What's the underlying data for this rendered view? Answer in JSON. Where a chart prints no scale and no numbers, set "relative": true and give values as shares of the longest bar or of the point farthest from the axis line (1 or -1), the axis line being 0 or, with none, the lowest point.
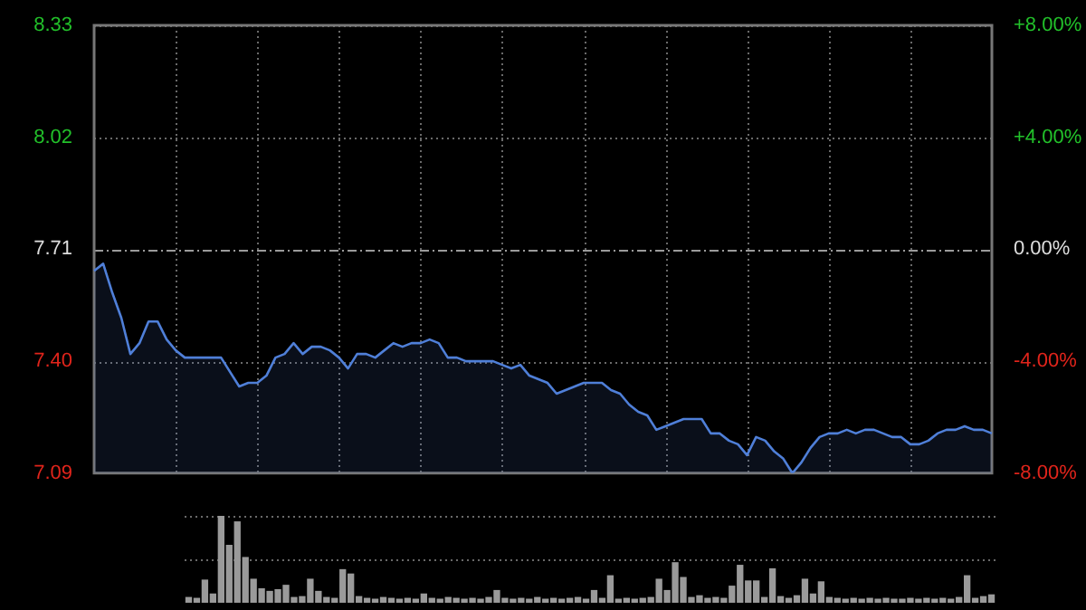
{
  "chart_data": [
    {
      "type": "area",
      "categories": [
        null,
        null,
        null,
        null,
        null,
        null,
        null,
        null,
        null,
        null,
        null,
        null,
        null,
        null,
        null,
        null,
        null,
        null,
        null,
        null,
        null,
        null,
        null,
        null,
        null,
        null,
        null,
        null,
        null,
        null,
        null,
        null,
        null,
        null,
        null,
        null,
        null,
        null,
        null,
        null,
        null,
        null,
        null,
        null,
        null,
        null,
        null,
        null,
        null,
        null,
        null,
        null,
        null,
        null,
        null,
        null,
        null,
        null,
        null,
        null,
        null,
        null,
        null,
        null,
        null,
        null,
        null,
        null,
        null,
        null,
        null,
        null,
        null,
        null,
        null,
        null,
        null,
        null,
        null,
        null,
        null,
        null,
        null,
        null,
        null,
        null,
        null,
        null,
        null,
        null,
        null,
        null,
        null,
        null,
        null,
        null,
        null,
        null,
        null,
        null
      ],
      "series": [
        {
          "color": "#4f7fd8",
          "values": [
            7.65,
            7.67,
            7.59,
            7.52,
            7.42,
            7.45,
            7.51,
            7.51,
            7.46,
            7.43,
            7.41,
            7.41,
            7.41,
            7.41,
            7.41,
            7.37,
            7.33,
            7.34,
            7.34,
            7.36,
            7.41,
            7.42,
            7.45,
            7.42,
            7.44,
            7.44,
            7.43,
            7.41,
            7.38,
            7.42,
            7.42,
            7.41,
            7.43,
            7.45,
            7.44,
            7.45,
            7.45,
            7.46,
            7.45,
            7.41,
            7.41,
            7.4,
            7.4,
            7.4,
            7.4,
            7.39,
            7.38,
            7.39,
            7.36,
            7.35,
            7.34,
            7.31,
            7.32,
            7.33,
            7.34,
            7.34,
            7.34,
            7.32,
            7.31,
            7.28,
            7.26,
            7.25,
            7.21,
            7.22,
            7.23,
            7.24,
            7.24,
            7.24,
            7.2,
            7.2,
            7.18,
            7.17,
            7.14,
            7.19,
            7.18,
            7.15,
            7.13,
            7.09,
            7.12,
            7.16,
            7.19,
            7.2,
            7.2,
            7.21,
            7.2,
            7.21,
            7.21,
            7.2,
            7.19,
            7.19,
            7.17,
            7.17,
            7.18,
            7.2,
            7.21,
            7.21,
            7.22,
            7.21,
            7.21,
            7.2
          ]
        }
      ],
      "ylim": [
        7.09,
        8.33
      ],
      "yticks": [
        7.09,
        {
          "value": 7.4,
          "label": "7.40"
        },
        7.71,
        8.02,
        8.33
      ],
      "y2lim": [
        -8,
        8
      ],
      "y2ticks": [
        {
          "value": -8,
          "label": "-8.00%"
        },
        {
          "value": -4,
          "label": "-4.00%"
        },
        {
          "value": 0,
          "label": "0.00%"
        },
        {
          "value": 4,
          "label": "+4.00%"
        },
        {
          "value": 8,
          "label": "+8.00%"
        }
      ],
      "grid": true,
      "ref_lines": [
        {
          "axis": "y",
          "value": 7.71,
          "line_style": "dashed",
          "color": "#9a9a9a"
        }
      ]
    },
    {
      "type": "bar",
      "relative": true,
      "categories": [
        null,
        null,
        null,
        null,
        null,
        null,
        null,
        null,
        null,
        null,
        null,
        null,
        null,
        null,
        null,
        null,
        null,
        null,
        null,
        null,
        null,
        null,
        null,
        null,
        null,
        null,
        null,
        null,
        null,
        null,
        null,
        null,
        null,
        null,
        null,
        null,
        null,
        null,
        null,
        null,
        null,
        null,
        null,
        null,
        null,
        null,
        null,
        null,
        null,
        null,
        null,
        null,
        null,
        null,
        null,
        null,
        null,
        null,
        null,
        null,
        null,
        null,
        null,
        null,
        null,
        null,
        null,
        null,
        null,
        null,
        null,
        null,
        null,
        null,
        null,
        null,
        null,
        null,
        null,
        null,
        null,
        null,
        null,
        null,
        null,
        null,
        null,
        null,
        null,
        null,
        null,
        null,
        null,
        null,
        null,
        null,
        null,
        null,
        null,
        null
      ],
      "values": [
        0.06,
        0.05,
        0.26,
        0.1,
        1,
        0.66,
        0.93,
        0.52,
        0.27,
        0.16,
        0.13,
        0.15,
        0.2,
        0.06,
        0.07,
        0.27,
        0.13,
        0.06,
        0.05,
        0.38,
        0.33,
        0.07,
        0.05,
        0.04,
        0.06,
        0.05,
        0.04,
        0.05,
        0.04,
        0.1,
        0.05,
        0.04,
        0.06,
        0.05,
        0.04,
        0.05,
        0.04,
        0.06,
        0.14,
        0.05,
        0.04,
        0.05,
        0.04,
        0.06,
        0.04,
        0.05,
        0.04,
        0.05,
        0.06,
        0.04,
        0.14,
        0.05,
        0.31,
        0.04,
        0.05,
        0.04,
        0.05,
        0.06,
        0.27,
        0.14,
        0.46,
        0.29,
        0.06,
        0.08,
        0.05,
        0.06,
        0.05,
        0.19,
        0.43,
        0.25,
        0.25,
        0.06,
        0.39,
        0.07,
        0.05,
        0.08,
        0.27,
        0.1,
        0.24,
        0.06,
        0.05,
        0.04,
        0.05,
        0.04,
        0.05,
        0.04,
        0.05,
        0.04,
        0.04,
        0.05,
        0.04,
        0.05,
        0.04,
        0.05,
        0.04,
        0.06,
        0.31,
        0.05,
        0.07,
        0.09
      ],
      "color": "#9a9a9a",
      "ref_lines": [
        {
          "axis": "y",
          "value": 0.5,
          "line_style": "dotted",
          "color": "#6a6a6a"
        },
        {
          "axis": "y",
          "value": 1,
          "line_style": "dotted",
          "color": "#6a6a6a"
        }
      ]
    }
  ]
}
